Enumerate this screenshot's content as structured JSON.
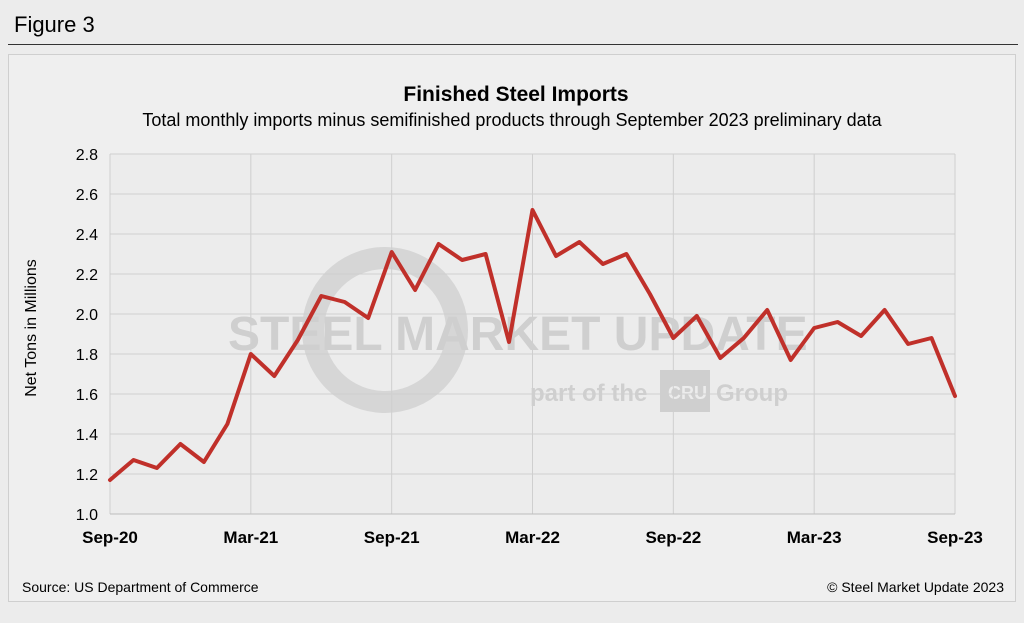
{
  "figure_label": "Figure 3",
  "watermark": {
    "brand": "STEEL MARKET UPDATE",
    "tagline_prefix": "part of the",
    "tagline_logo": "CRU",
    "tagline_suffix": "Group"
  },
  "source": "Source: US Department of Commerce",
  "copyright": "© Steel Market Update 2023",
  "colors": {
    "line": "#c0302a",
    "grid": "#cfcfcf",
    "plot_bg": "#e9e9e9"
  },
  "chart_data": {
    "type": "line",
    "title": "Finished Steel Imports",
    "subtitle": "Total monthly imports minus semifinished products through September 2023 preliminary data",
    "ylabel": "Net Tons in Millions",
    "xlabel": "",
    "ylim": [
      1.0,
      2.8
    ],
    "yticks": [
      "1.0",
      "1.2",
      "1.4",
      "1.6",
      "1.8",
      "2.0",
      "2.2",
      "2.4",
      "2.6",
      "2.8"
    ],
    "xticks": [
      {
        "index": 0,
        "label": "Sep-20"
      },
      {
        "index": 6,
        "label": "Mar-21"
      },
      {
        "index": 12,
        "label": "Sep-21"
      },
      {
        "index": 18,
        "label": "Mar-22"
      },
      {
        "index": 24,
        "label": "Sep-22"
      },
      {
        "index": 30,
        "label": "Mar-23"
      },
      {
        "index": 36,
        "label": "Sep-23"
      }
    ],
    "grid": true,
    "series": [
      {
        "x": [
          "Sep-20",
          "Oct-20",
          "Nov-20",
          "Dec-20",
          "Jan-21",
          "Feb-21",
          "Mar-21",
          "Apr-21",
          "May-21",
          "Jun-21",
          "Jul-21",
          "Aug-21",
          "Sep-21",
          "Oct-21",
          "Nov-21",
          "Dec-21",
          "Jan-22",
          "Feb-22",
          "Mar-22",
          "Apr-22",
          "May-22",
          "Jun-22",
          "Jul-22",
          "Aug-22",
          "Sep-22",
          "Oct-22",
          "Nov-22",
          "Dec-22",
          "Jan-23",
          "Feb-23",
          "Mar-23",
          "Apr-23",
          "May-23",
          "Jun-23",
          "Jul-23",
          "Aug-23",
          "Sep-23"
        ],
        "values": [
          1.17,
          1.27,
          1.23,
          1.35,
          1.26,
          1.45,
          1.8,
          1.69,
          1.87,
          2.09,
          2.06,
          1.98,
          2.31,
          2.12,
          2.35,
          2.27,
          2.3,
          1.86,
          2.52,
          2.29,
          2.36,
          2.25,
          2.3,
          2.1,
          1.88,
          1.99,
          1.78,
          1.88,
          2.02,
          1.77,
          1.93,
          1.96,
          1.89,
          2.02,
          1.85,
          1.88,
          1.59
        ]
      }
    ]
  }
}
